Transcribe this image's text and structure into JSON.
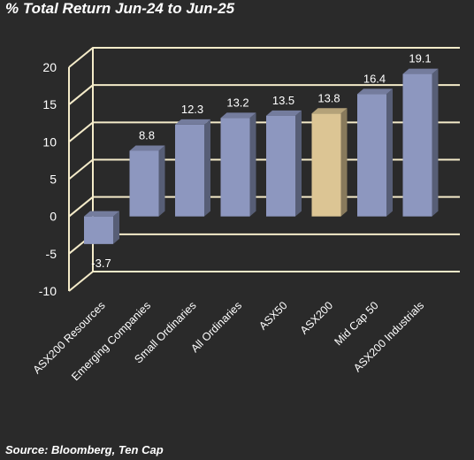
{
  "title": "% Total Return Jun-24 to Jun-25",
  "source": "Source: Bloomberg, Ten Cap",
  "colors": {
    "background": "#2a2a2a",
    "bar": "#8d97bf",
    "highlight": "#dcc594",
    "grid": "#f4ebc9"
  },
  "chart_data": {
    "type": "bar",
    "title": "% Total Return Jun-24 to Jun-25",
    "categories": [
      "ASX200 Resources",
      "Emerging Companies",
      "Small Ordinaries",
      "All Ordinaries",
      "ASX50",
      "ASX200",
      "Mid Cap 50",
      "ASX200 Industrials"
    ],
    "values": [
      -3.7,
      8.8,
      12.3,
      13.2,
      13.5,
      13.8,
      16.4,
      19.1
    ],
    "data_labels": [
      "-3.7",
      "8.8",
      "12.3",
      "13.2",
      "13.5",
      "13.8",
      "16.4",
      "19.1"
    ],
    "highlight_category": "ASX200",
    "ylim": [
      -10,
      20
    ],
    "yticks": [
      "-10",
      "-5",
      "0",
      "5",
      "10",
      "15",
      "20"
    ],
    "grid": true,
    "legend": "none",
    "xlabel": "",
    "ylabel": ""
  }
}
